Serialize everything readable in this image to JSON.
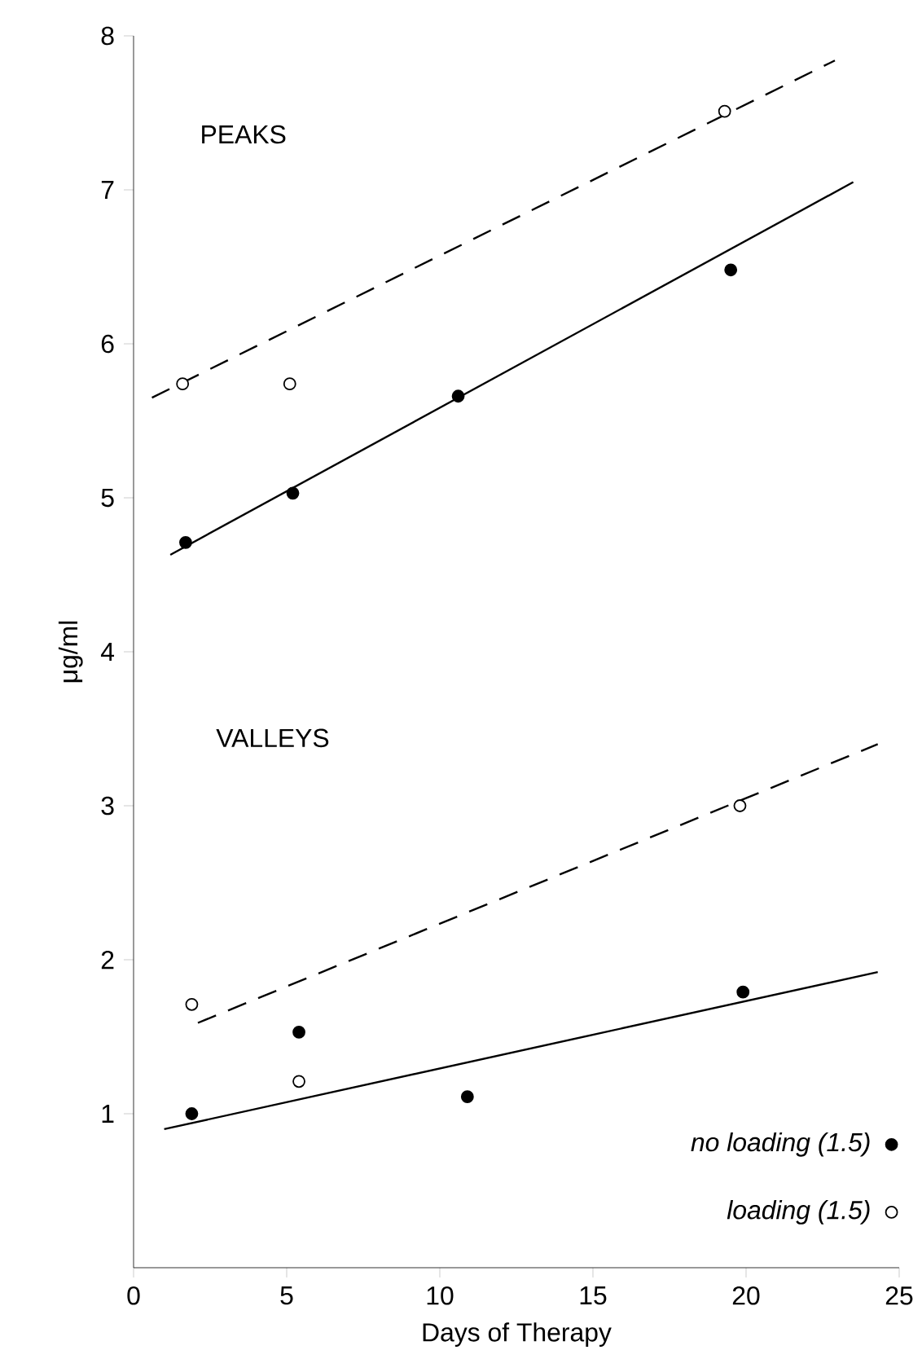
{
  "chart_data": {
    "type": "scatter",
    "xlabel": "Days of Therapy",
    "ylabel": "μg/ml",
    "annotations": [
      "PEAKS",
      "VALLEYS"
    ],
    "xlim": [
      0,
      25
    ],
    "ylim": [
      0,
      8
    ],
    "xticks": [
      0,
      5,
      10,
      15,
      20,
      25
    ],
    "yticks": [
      1,
      2,
      3,
      4,
      5,
      6,
      7,
      8
    ],
    "grid": false,
    "legend": "bottom right",
    "marker": "circle",
    "series": [
      {
        "name": "no loading (1.5)",
        "color": "#000000",
        "x": [
          1.7,
          5.2,
          10.6,
          19.5,
          1.9,
          5.4,
          10.9,
          19.9
        ],
        "values": [
          4.71,
          5.03,
          5.66,
          6.48,
          1.0,
          1.53,
          1.11,
          1.79
        ]
      },
      {
        "name": "loading (1.5)",
        "color": "#ffffff",
        "x": [
          1.6,
          5.1,
          19.3,
          1.9,
          5.4,
          19.8
        ],
        "values": [
          5.74,
          5.74,
          7.51,
          1.71,
          1.21,
          3.0
        ]
      },
      {
        "type": "line",
        "color": "#000000",
        "line_style": "dashed",
        "marker": "none",
        "x": [
          0.6,
          22.9
        ],
        "values": [
          5.65,
          7.84
        ]
      },
      {
        "type": "line",
        "color": "#000000",
        "line_style": "solid",
        "marker": "none",
        "x": [
          1.2,
          23.5
        ],
        "values": [
          4.63,
          7.05
        ]
      },
      {
        "type": "line",
        "color": "#000000",
        "line_style": "dashed",
        "marker": "none",
        "x": [
          2.1,
          24.3
        ],
        "values": [
          1.59,
          3.4
        ]
      },
      {
        "type": "line",
        "color": "#000000",
        "line_style": "solid",
        "marker": "none",
        "x": [
          1.0,
          24.3
        ],
        "values": [
          0.9,
          1.92
        ]
      }
    ]
  }
}
